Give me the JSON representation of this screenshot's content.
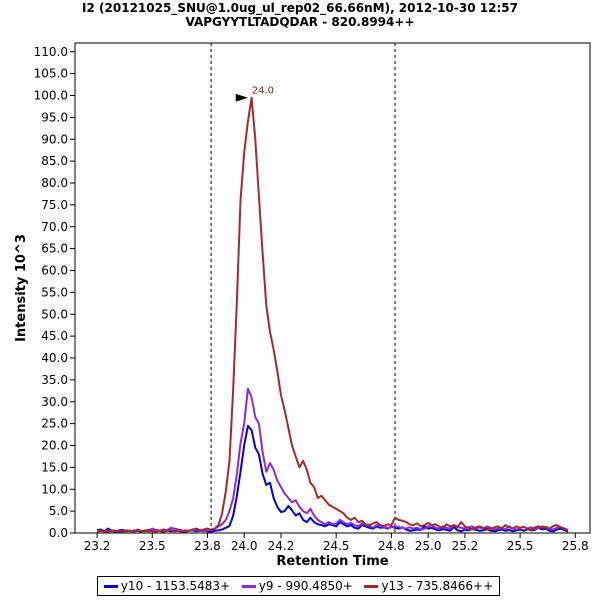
{
  "chart_data": {
    "type": "line",
    "title": "I2 (20121025_SNU@1.0ug_ul_rep02_66.66nM), 2012-10-30 12:57",
    "subtitle": "VAPGYYTLTADQDAR - 820.8994++",
    "xlabel": "Retention Time",
    "ylabel": "Intensity 10^3",
    "xlim": [
      23.08,
      25.88
    ],
    "ylim": [
      0,
      112
    ],
    "x_ticks": [
      "23.2",
      "23.5",
      "23.8",
      "24.0",
      "24.2",
      "24.5",
      "24.8",
      "25.0",
      "25.2",
      "25.5",
      "25.8"
    ],
    "x_tick_values": [
      23.2,
      23.5,
      23.8,
      24.0,
      24.2,
      24.5,
      24.8,
      25.0,
      25.2,
      25.5,
      25.8
    ],
    "y_ticks": [
      "0.0",
      "5.0",
      "10.0",
      "15.0",
      "20.0",
      "25.0",
      "30.0",
      "35.0",
      "40.0",
      "45.0",
      "50.0",
      "55.0",
      "60.0",
      "65.0",
      "70.0",
      "75.0",
      "80.0",
      "85.0",
      "90.0",
      "95.0",
      "100.0",
      "105.0",
      "110.0"
    ],
    "y_tick_values": [
      0,
      5,
      10,
      15,
      20,
      25,
      30,
      35,
      40,
      45,
      50,
      55,
      60,
      65,
      70,
      75,
      80,
      85,
      90,
      95,
      100,
      105,
      110
    ],
    "vlines": [
      23.82,
      24.82
    ],
    "peak_label": {
      "text": "24.0",
      "x": 24.03,
      "y": 99.5,
      "color": "#8b1a1a"
    },
    "x": [
      23.2,
      23.22,
      23.24,
      23.26,
      23.28,
      23.3,
      23.32,
      23.34,
      23.36,
      23.38,
      23.4,
      23.42,
      23.44,
      23.46,
      23.48,
      23.5,
      23.52,
      23.54,
      23.56,
      23.58,
      23.6,
      23.62,
      23.64,
      23.66,
      23.68,
      23.7,
      23.72,
      23.74,
      23.76,
      23.78,
      23.8,
      23.82,
      23.84,
      23.86,
      23.88,
      23.9,
      23.92,
      23.94,
      23.96,
      23.98,
      24.0,
      24.02,
      24.04,
      24.06,
      24.08,
      24.1,
      24.12,
      24.14,
      24.16,
      24.18,
      24.2,
      24.22,
      24.24,
      24.26,
      24.28,
      24.3,
      24.32,
      24.34,
      24.36,
      24.38,
      24.4,
      24.42,
      24.44,
      24.46,
      24.48,
      24.5,
      24.52,
      24.54,
      24.56,
      24.58,
      24.6,
      24.62,
      24.64,
      24.66,
      24.68,
      24.7,
      24.72,
      24.74,
      24.76,
      24.78,
      24.8,
      24.82,
      24.84,
      24.86,
      24.88,
      24.9,
      24.92,
      24.94,
      24.96,
      24.98,
      25.0,
      25.02,
      25.04,
      25.06,
      25.08,
      25.1,
      25.12,
      25.14,
      25.16,
      25.18,
      25.2,
      25.22,
      25.24,
      25.26,
      25.28,
      25.3,
      25.32,
      25.34,
      25.36,
      25.38,
      25.4,
      25.42,
      25.44,
      25.46,
      25.48,
      25.5,
      25.52,
      25.54,
      25.56,
      25.58,
      25.6,
      25.62,
      25.64,
      25.66,
      25.68,
      25.7,
      25.72,
      25.74,
      25.76
    ],
    "series": [
      {
        "name": "y10 - 1153.5483+",
        "color": "#0000dd",
        "values": [
          0.6,
          0.8,
          0.4,
          1.0,
          0.5,
          0.3,
          0.6,
          0.7,
          0.4,
          0.5,
          0.3,
          0.6,
          0.4,
          0.5,
          0.7,
          0.4,
          0.6,
          0.5,
          0.3,
          0.6,
          0.4,
          0.5,
          0.7,
          0.4,
          0.3,
          0.5,
          0.6,
          0.4,
          0.5,
          0.6,
          0.4,
          0.3,
          0.5,
          0.6,
          0.8,
          1.2,
          1.6,
          4.0,
          8.5,
          14.0,
          20.0,
          24.5,
          23.5,
          19.5,
          18.0,
          13.5,
          11.0,
          11.5,
          8.0,
          6.0,
          4.8,
          5.0,
          6.2,
          5.2,
          4.0,
          4.5,
          3.0,
          2.5,
          3.5,
          2.5,
          2.0,
          1.8,
          1.5,
          2.0,
          1.8,
          1.5,
          2.5,
          2.0,
          1.5,
          1.8,
          1.2,
          1.0,
          1.8,
          1.5,
          1.2,
          1.0,
          1.5,
          1.2,
          1.3,
          1.0,
          1.5,
          1.2,
          1.0,
          1.3,
          0.8,
          0.5,
          0.6,
          0.8,
          0.7,
          1.5,
          1.0,
          1.2,
          0.8,
          0.6,
          0.9,
          0.7,
          0.5,
          1.4,
          0.6,
          0.4,
          0.8,
          0.6,
          1.0,
          0.7,
          0.5,
          0.6,
          0.9,
          0.5,
          0.4,
          0.6,
          0.8,
          0.5,
          0.7,
          0.4,
          0.6,
          0.8,
          0.5,
          0.9,
          0.6,
          0.7,
          1.2,
          0.8,
          1.0,
          0.5,
          0.4,
          0.8,
          1.0,
          0.7,
          0.3
        ]
      },
      {
        "name": "y9 - 990.4850+",
        "color": "#8a2be2",
        "values": [
          0.4,
          0.5,
          0.3,
          0.6,
          0.4,
          0.5,
          0.3,
          0.4,
          0.6,
          0.5,
          0.3,
          0.8,
          0.5,
          0.4,
          0.6,
          1.0,
          0.7,
          0.5,
          0.8,
          0.6,
          1.2,
          1.0,
          0.8,
          0.6,
          0.4,
          0.5,
          0.7,
          0.6,
          0.5,
          0.4,
          0.6,
          0.8,
          1.0,
          1.5,
          2.0,
          3.0,
          5.0,
          8.0,
          13.5,
          20.5,
          25.0,
          33.0,
          31.0,
          26.5,
          25.0,
          18.5,
          14.0,
          16.0,
          14.5,
          12.0,
          10.5,
          9.0,
          8.0,
          7.0,
          7.5,
          6.0,
          5.0,
          4.5,
          5.5,
          4.0,
          3.0,
          2.5,
          2.0,
          2.5,
          2.0,
          2.2,
          3.0,
          2.5,
          2.0,
          2.3,
          1.8,
          1.5,
          2.2,
          1.8,
          1.6,
          1.2,
          1.8,
          1.5,
          1.4,
          1.2,
          1.3,
          1.5,
          1.4,
          1.2,
          1.0,
          1.3,
          1.0,
          1.2,
          0.8,
          1.0,
          1.5,
          1.8,
          1.2,
          1.0,
          1.5,
          1.2,
          1.0,
          1.8,
          1.3,
          1.2,
          1.0,
          1.3,
          1.5,
          1.0,
          1.3,
          1.0,
          1.5,
          1.2,
          0.8,
          1.0,
          1.2,
          0.8,
          1.5,
          1.0,
          0.8,
          1.2,
          1.4,
          1.0,
          1.3,
          0.9,
          1.2,
          1.5,
          1.3,
          1.0,
          0.8,
          1.2,
          1.4,
          1.0,
          0.7
        ]
      },
      {
        "name": "y13 - 735.8466++",
        "color": "#a52a2a",
        "values": [
          0.3,
          0.5,
          0.4,
          0.3,
          0.6,
          0.5,
          0.4,
          0.3,
          0.5,
          0.4,
          0.6,
          0.5,
          0.3,
          0.6,
          0.4,
          0.5,
          0.3,
          0.6,
          0.4,
          0.5,
          0.7,
          0.4,
          0.5,
          0.3,
          0.6,
          0.5,
          0.8,
          1.0,
          0.6,
          0.8,
          1.0,
          0.7,
          1.0,
          1.8,
          4.5,
          9.5,
          16.5,
          33.0,
          53.0,
          76.0,
          87.0,
          94.0,
          99.5,
          90.0,
          77.0,
          64.0,
          52.0,
          46.0,
          42.0,
          37.0,
          31.5,
          28.0,
          24.0,
          20.0,
          17.5,
          15.0,
          16.5,
          14.5,
          11.5,
          10.5,
          8.0,
          8.5,
          7.5,
          6.5,
          6.0,
          5.5,
          5.0,
          4.5,
          3.5,
          3.0,
          3.5,
          2.5,
          2.8,
          2.0,
          1.8,
          2.2,
          2.5,
          1.8,
          1.6,
          2.0,
          1.8,
          3.5,
          3.0,
          2.8,
          2.5,
          2.0,
          1.8,
          2.2,
          1.5,
          1.8,
          2.3,
          1.8,
          2.0,
          1.5,
          1.2,
          2.0,
          1.5,
          1.8,
          1.4,
          2.5,
          1.5,
          1.2,
          0.8,
          1.3,
          1.5,
          1.2,
          1.0,
          0.8,
          1.3,
          1.5,
          1.0,
          1.8,
          1.3,
          1.0,
          1.5,
          1.2,
          1.4,
          1.0,
          0.7,
          1.3,
          1.5,
          1.2,
          1.4,
          1.0,
          1.6,
          1.8,
          1.3,
          1.0,
          0.6
        ]
      }
    ],
    "legend_position": "bottom",
    "grid": false
  }
}
